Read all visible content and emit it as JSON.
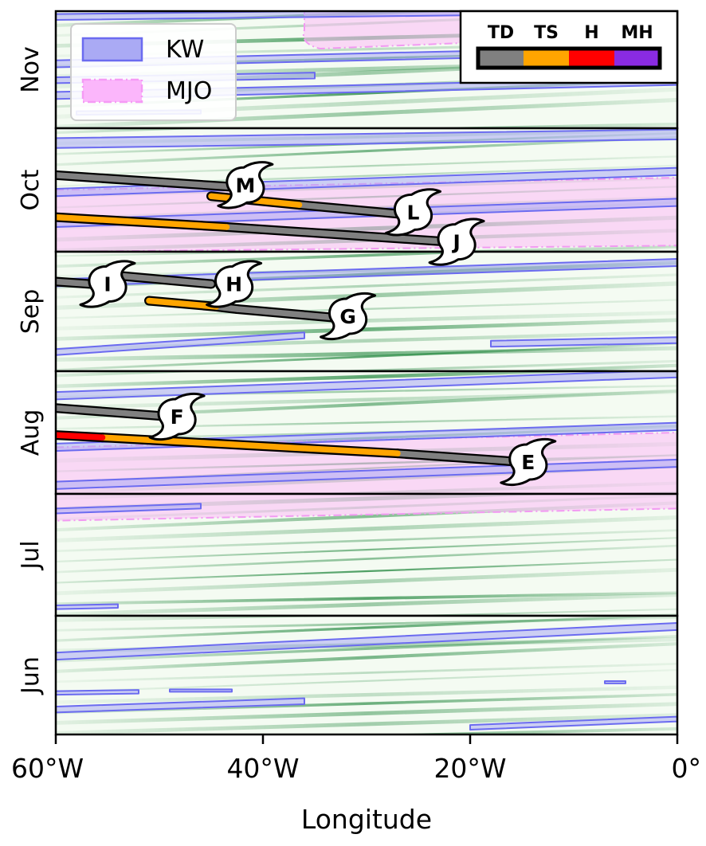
{
  "chart_data": {
    "type": "line",
    "xlabel": "Longitude",
    "x_ticks": [
      {
        "value": -60,
        "label": "60°W"
      },
      {
        "value": -40,
        "label": "40°W"
      },
      {
        "value": -20,
        "label": "20°W"
      },
      {
        "value": 0,
        "label": "0°"
      }
    ],
    "xlim": [
      -60,
      0
    ],
    "months": [
      "Nov",
      "Oct",
      "Sep",
      "Aug",
      "Jul",
      "Jun"
    ],
    "legend_waves": {
      "placement": "top-left",
      "items": [
        {
          "label": "KW",
          "fill": "#aaaaf4",
          "stroke": "#6b6bf0",
          "dash": "none"
        },
        {
          "label": "MJO",
          "fill": "#fbb6fb",
          "stroke": "#f59af5",
          "dash": "dashdot"
        }
      ]
    },
    "legend_intensity": {
      "placement": "top-right",
      "items": [
        {
          "label": "TD",
          "color": "#808080"
        },
        {
          "label": "TS",
          "color": "#ffa500"
        },
        {
          "label": "H",
          "color": "#ff0000"
        },
        {
          "label": "MH",
          "color": "#8a2be2"
        }
      ]
    },
    "colors": {
      "TD": "#808080",
      "TS": "#ffa500",
      "H": "#ff0000",
      "MH": "#8a2be2",
      "kw_fill": "#aaaaf4",
      "kw_stroke": "#6b6bf0",
      "mjo_fill": "#fbc2f7",
      "mjo_stroke": "#f29af2",
      "background_streak": "#0b7a2a"
    },
    "storms": [
      {
        "name": "M",
        "month": "Oct",
        "segments": [
          {
            "intensity": "TD",
            "x": [
              -60,
              -42
            ],
            "y": [
              0.38,
              0.48
            ]
          },
          {
            "intensity": "TS",
            "x": [
              -45,
              -36.5
            ],
            "y": [
              0.55,
              0.62
            ]
          }
        ]
      },
      {
        "name": "L",
        "month": "Oct",
        "segments": [
          {
            "intensity": "TD",
            "x": [
              -36.5,
              -26
            ],
            "y": [
              0.62,
              0.7
            ]
          }
        ]
      },
      {
        "name": "J",
        "month": "Oct",
        "segments": [
          {
            "intensity": "TS",
            "x": [
              -60,
              -43.5
            ],
            "y": [
              0.72,
              0.8
            ]
          },
          {
            "intensity": "TD",
            "x": [
              -43.5,
              -22
            ],
            "y": [
              0.8,
              0.92
            ]
          }
        ]
      },
      {
        "name": "I",
        "month": "Sep",
        "segments": [
          {
            "intensity": "TD",
            "x": [
              -60,
              -55
            ],
            "y": [
              0.25,
              0.28
            ]
          }
        ]
      },
      {
        "name": "H",
        "month": "Sep",
        "segments": [
          {
            "intensity": "TD",
            "x": [
              -54,
              -45
            ],
            "y": [
              0.2,
              0.27
            ]
          },
          {
            "intensity": "TS",
            "x": [
              -51,
              -44.5
            ],
            "y": [
              0.41,
              0.46
            ]
          },
          {
            "intensity": "TD",
            "x": [
              -44.5,
              -42.5
            ],
            "y": [
              0.46,
              0.48
            ]
          }
        ]
      },
      {
        "name": "G",
        "month": "Sep",
        "segments": [
          {
            "intensity": "TD",
            "x": [
              -42.5,
              -32
            ],
            "y": [
              0.48,
              0.56
            ]
          }
        ]
      },
      {
        "name": "F",
        "month": "Aug",
        "segments": [
          {
            "intensity": "TD",
            "x": [
              -60,
              -49
            ],
            "y": [
              0.3,
              0.37
            ]
          }
        ]
      },
      {
        "name": "E",
        "month": "Aug",
        "segments": [
          {
            "intensity": "H",
            "x": [
              -60,
              -55.5
            ],
            "y": [
              0.52,
              0.54
            ]
          },
          {
            "intensity": "TS",
            "x": [
              -55.5,
              -27
            ],
            "y": [
              0.54,
              0.67
            ]
          },
          {
            "intensity": "TD",
            "x": [
              -27,
              -15
            ],
            "y": [
              0.67,
              0.74
            ]
          }
        ]
      }
    ],
    "storm_markers": [
      {
        "name": "M",
        "month": "Oct",
        "x": -41.7,
        "y": 0.46
      },
      {
        "name": "L",
        "month": "Oct",
        "x": -25.5,
        "y": 0.68
      },
      {
        "name": "J",
        "month": "Oct",
        "x": -21.3,
        "y": 0.92
      },
      {
        "name": "I",
        "month": "Sep",
        "x": -55,
        "y": 0.27
      },
      {
        "name": "H",
        "month": "Sep",
        "x": -42.8,
        "y": 0.27
      },
      {
        "name": "G",
        "month": "Sep",
        "x": -31.8,
        "y": 0.54
      },
      {
        "name": "F",
        "month": "Aug",
        "x": -48.3,
        "y": 0.37
      },
      {
        "name": "E",
        "month": "Aug",
        "x": -14.4,
        "y": 0.74
      }
    ],
    "kelvin_waves": [
      {
        "month": "Nov",
        "x": [
          -60,
          0
        ],
        "y": [
          0.05,
          -0.01
        ],
        "w": 0.05
      },
      {
        "month": "Nov",
        "x": [
          -60,
          0
        ],
        "y": [
          0.45,
          0.33
        ],
        "w": 0.06
      },
      {
        "month": "Nov",
        "x": [
          -60,
          -35
        ],
        "y": [
          0.59,
          0.55
        ],
        "w": 0.05
      },
      {
        "month": "Nov",
        "x": [
          -60,
          0
        ],
        "y": [
          0.72,
          0.6
        ],
        "w": 0.06
      },
      {
        "month": "Nov",
        "x": [
          -58,
          -46
        ],
        "y": [
          0.87,
          0.86
        ],
        "w": 0.03
      },
      {
        "month": "Oct",
        "x": [
          -60,
          0
        ],
        "y": [
          0.12,
          0.05
        ],
        "w": 0.08
      },
      {
        "month": "Oct",
        "x": [
          -60,
          0
        ],
        "y": [
          0.52,
          0.35
        ],
        "w": 0.06
      },
      {
        "month": "Oct",
        "x": [
          -60,
          0
        ],
        "y": [
          0.77,
          0.6
        ],
        "w": 0.06
      },
      {
        "month": "Sep",
        "x": [
          -60,
          0
        ],
        "y": [
          0.26,
          0.09
        ],
        "w": 0.06
      },
      {
        "month": "Sep",
        "x": [
          -60,
          -36
        ],
        "y": [
          0.84,
          0.7
        ],
        "w": 0.05
      },
      {
        "month": "Sep",
        "x": [
          -18,
          0
        ],
        "y": [
          0.77,
          0.74
        ],
        "w": 0.05
      },
      {
        "month": "Aug",
        "x": [
          -60,
          0
        ],
        "y": [
          0.2,
          0.02
        ],
        "w": 0.06
      },
      {
        "month": "Aug",
        "x": [
          -60,
          0
        ],
        "y": [
          0.62,
          0.45
        ],
        "w": 0.06
      },
      {
        "month": "Aug",
        "x": [
          -60,
          0
        ],
        "y": [
          0.93,
          0.75
        ],
        "w": 0.06
      },
      {
        "month": "Jul",
        "x": [
          -60,
          -46
        ],
        "y": [
          0.14,
          0.1
        ],
        "w": 0.04
      },
      {
        "month": "Jul",
        "x": [
          -60,
          -54
        ],
        "y": [
          0.93,
          0.92
        ],
        "w": 0.03
      },
      {
        "month": "Jun",
        "x": [
          -60,
          0
        ],
        "y": [
          0.34,
          0.09
        ],
        "w": 0.06
      },
      {
        "month": "Jun",
        "x": [
          -60,
          -52
        ],
        "y": [
          0.65,
          0.64
        ],
        "w": 0.03
      },
      {
        "month": "Jun",
        "x": [
          -49,
          -43
        ],
        "y": [
          0.63,
          0.63
        ],
        "w": 0.02
      },
      {
        "month": "Jun",
        "x": [
          -60,
          -36
        ],
        "y": [
          0.79,
          0.72
        ],
        "w": 0.05
      },
      {
        "month": "Jun",
        "x": [
          -7,
          -5
        ],
        "y": [
          0.56,
          0.56
        ],
        "w": 0.02
      },
      {
        "month": "Jun",
        "x": [
          -20,
          0
        ],
        "y": [
          0.94,
          0.87
        ],
        "w": 0.04
      }
    ],
    "mjo_events": [
      {
        "month": "Nov",
        "x": [
          -36,
          0
        ],
        "top": [
          0.0,
          0.0
        ],
        "bottom": [
          0.32,
          0.2
        ],
        "start_x": -36
      },
      {
        "month": "Oct",
        "x": [
          -60,
          0
        ],
        "top": [
          0.5,
          0.4
        ],
        "bottom": [
          1.0,
          0.95
        ]
      },
      {
        "month": "Aug",
        "x": [
          -60,
          0
        ],
        "top": [
          0.62,
          0.5
        ],
        "bottom": [
          1.0,
          1.0
        ]
      },
      {
        "month": "Jul",
        "x": [
          -60,
          0
        ],
        "top": [
          0.0,
          0.0
        ],
        "bottom": [
          0.22,
          0.12
        ]
      }
    ]
  }
}
